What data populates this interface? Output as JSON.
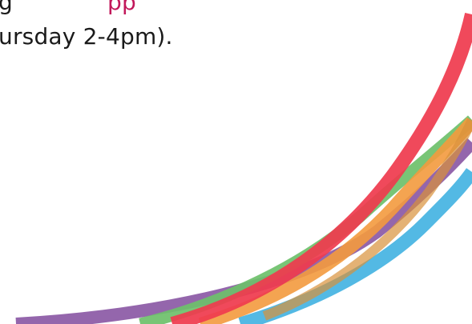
{
  "text": {
    "line1_prefix": "g",
    "line1_link_fragment": "pp",
    "line2": "ursday 2-4pm)."
  },
  "colors": {
    "body_text": "#1a1a1a",
    "link_text": "#c2185b",
    "stripe_purple": "#8e5ea8",
    "stripe_green": "#6cc06a",
    "stripe_blue": "#4ab5e3",
    "stripe_orange": "#f39a3e",
    "stripe_red": "#ef3b4f",
    "stripe_gold": "#d9923a"
  },
  "decoration": {
    "name": "rainbow-swoosh-stripes",
    "stripe_order": [
      "purple",
      "green",
      "blue",
      "orange",
      "red",
      "gold"
    ]
  }
}
